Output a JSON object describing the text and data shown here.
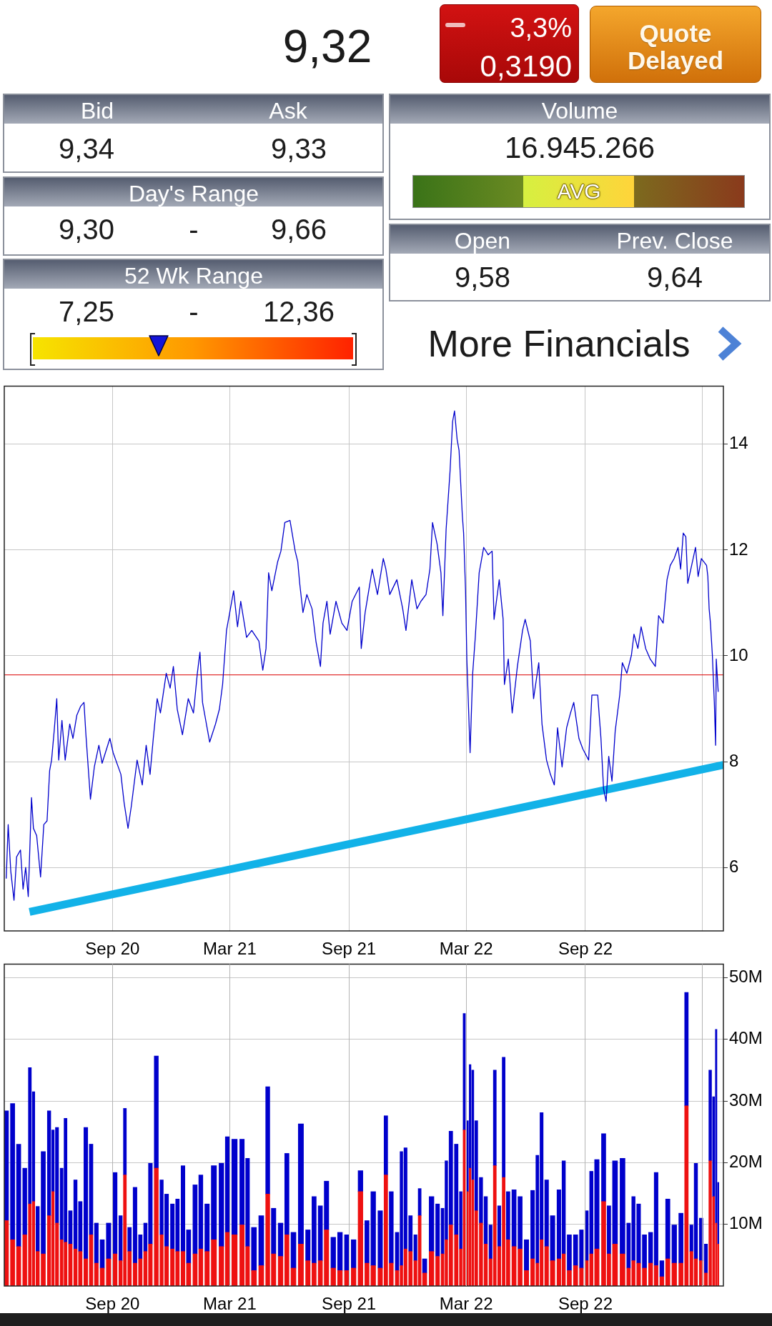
{
  "chart_data": [
    {
      "type": "other",
      "annotations": [
        "9,32",
        "3,3%",
        "0,3190",
        "Quote Delayed",
        "Bid",
        "Ask",
        "9,34",
        "9,33",
        "Day's Range",
        "9,30",
        "-",
        "9,66",
        "52 Wk Range",
        "7,25",
        "-",
        "12,36",
        "Volume",
        "16.945.266",
        "AVG",
        "Open",
        "Prev. Close",
        "9,58",
        "9,64",
        "More Financials"
      ]
    },
    {
      "type": "line",
      "series": [
        {
          "color": "#0000cc",
          "x": [
            "2020-03-21",
            "2020-03-24",
            "2020-03-28",
            "2020-04-02",
            "2020-04-06",
            "2020-04-12",
            "2020-04-16",
            "2020-04-20",
            "2020-04-24",
            "2020-04-29",
            "2020-05-02",
            "2020-05-07",
            "2020-05-13",
            "2020-05-18",
            "2020-05-23",
            "2020-05-27",
            "2020-05-30",
            "2020-06-03",
            "2020-06-07",
            "2020-06-10",
            "2020-06-15",
            "2020-06-20",
            "2020-06-27",
            "2020-07-02",
            "2020-07-08",
            "2020-07-14",
            "2020-07-19",
            "2020-07-22",
            "2020-07-29",
            "2020-08-04",
            "2020-08-11",
            "2020-08-16",
            "2020-08-28",
            "2020-09-02",
            "2020-09-14",
            "2020-09-19",
            "2020-09-25",
            "2020-09-30",
            "2020-10-09",
            "2020-10-17",
            "2020-10-23",
            "2020-10-29",
            "2020-11-03",
            "2020-11-09",
            "2020-11-14",
            "2020-11-23",
            "2020-11-29",
            "2020-12-04",
            "2020-12-10",
            "2020-12-18",
            "2020-12-27",
            "2021-01-04",
            "2021-01-10",
            "2021-01-14",
            "2021-01-18",
            "2021-01-24",
            "2021-01-29",
            "2021-02-07",
            "2021-02-13",
            "2021-02-18",
            "2021-02-24",
            "2021-03-01",
            "2021-03-07",
            "2021-03-13",
            "2021-03-18",
            "2021-03-27",
            "2021-04-04",
            "2021-04-15",
            "2021-04-21",
            "2021-04-26",
            "2021-04-30",
            "2021-05-05",
            "2021-05-14",
            "2021-05-19",
            "2021-05-25",
            "2021-06-02",
            "2021-06-10",
            "2021-06-14",
            "2021-06-17",
            "2021-06-22",
            "2021-06-28",
            "2021-07-06",
            "2021-07-12",
            "2021-07-19",
            "2021-07-23",
            "2021-07-29",
            "2021-08-03",
            "2021-08-12",
            "2021-08-21",
            "2021-08-29",
            "2021-09-06",
            "2021-09-17",
            "2021-09-20",
            "2021-09-26",
            "2021-10-07",
            "2021-10-15",
            "2021-10-24",
            "2021-10-28",
            "2021-11-03",
            "2021-11-14",
            "2021-11-23",
            "2021-11-28",
            "2021-12-07",
            "2021-12-15",
            "2021-12-21",
            "2021-12-29",
            "2022-01-04",
            "2022-01-08",
            "2022-01-15",
            "2022-01-21",
            "2022-01-24",
            "2022-01-29",
            "2022-02-04",
            "2022-02-08",
            "2022-02-11",
            "2022-02-15",
            "2022-02-18",
            "2022-02-23",
            "2022-02-25",
            "2022-02-28",
            "2022-03-02",
            "2022-03-07",
            "2022-03-11",
            "2022-03-15",
            "2022-03-21",
            "2022-03-28",
            "2022-04-04",
            "2022-04-10",
            "2022-04-13",
            "2022-04-21",
            "2022-04-27",
            "2022-04-29",
            "2022-05-05",
            "2022-05-11",
            "2022-05-19",
            "2022-05-27",
            "2022-05-31",
            "2022-06-08",
            "2022-06-13",
            "2022-06-21",
            "2022-06-26",
            "2022-07-03",
            "2022-07-09",
            "2022-07-15",
            "2022-07-20",
            "2022-07-27",
            "2022-08-03",
            "2022-08-09",
            "2022-08-14",
            "2022-08-22",
            "2022-08-28",
            "2022-09-06",
            "2022-09-11",
            "2022-09-20",
            "2022-09-25",
            "2022-09-29",
            "2022-10-03",
            "2022-10-07",
            "2022-10-12",
            "2022-10-17",
            "2022-10-24",
            "2022-10-28",
            "2022-11-04",
            "2022-11-11",
            "2022-11-15",
            "2022-11-21",
            "2022-11-26",
            "2022-12-03",
            "2022-12-10",
            "2022-12-18",
            "2022-12-23",
            "2022-12-30",
            "2023-01-05",
            "2023-01-10",
            "2023-01-16",
            "2023-01-22",
            "2023-01-26",
            "2023-01-30",
            "2023-02-03",
            "2023-02-06",
            "2023-02-12",
            "2023-02-18",
            "2023-02-22",
            "2023-02-27",
            "2023-03-07",
            "2023-03-09",
            "2023-03-11",
            "2023-03-13",
            "2023-03-16",
            "2023-03-19",
            "2023-03-21",
            "2023-03-22",
            "2023-03-25"
          ],
          "values": [
            5.79,
            6.81,
            5.93,
            5.38,
            6.2,
            6.33,
            5.59,
            6.0,
            5.45,
            7.32,
            6.74,
            6.6,
            5.82,
            6.81,
            6.88,
            7.83,
            8.03,
            8.58,
            9.19,
            8.03,
            8.78,
            8.03,
            8.71,
            8.44,
            8.88,
            9.05,
            9.12,
            8.51,
            7.29,
            7.9,
            8.31,
            7.97,
            8.44,
            8.17,
            7.76,
            7.22,
            6.74,
            7.15,
            8.03,
            7.56,
            8.31,
            7.76,
            8.44,
            9.19,
            8.92,
            9.67,
            9.39,
            9.8,
            8.99,
            8.51,
            9.19,
            8.92,
            9.67,
            10.07,
            9.12,
            8.71,
            8.37,
            8.71,
            8.99,
            9.46,
            10.48,
            10.82,
            11.23,
            10.55,
            11.03,
            10.35,
            10.48,
            10.28,
            9.73,
            10.14,
            11.57,
            11.23,
            11.78,
            11.98,
            12.52,
            12.56,
            11.98,
            11.78,
            11.37,
            10.82,
            11.16,
            10.89,
            10.28,
            9.8,
            10.62,
            11.03,
            10.41,
            11.03,
            10.62,
            10.48,
            11.03,
            11.3,
            10.14,
            10.82,
            11.64,
            11.16,
            11.84,
            11.64,
            11.16,
            11.44,
            10.89,
            10.48,
            11.44,
            10.89,
            11.03,
            11.16,
            11.64,
            12.52,
            12.12,
            11.57,
            10.76,
            12.39,
            13.48,
            14.43,
            14.63,
            14.09,
            13.88,
            12.66,
            12.32,
            11.23,
            9.94,
            8.17,
            9.67,
            10.35,
            11.57,
            12.05,
            11.91,
            11.98,
            10.69,
            11.44,
            10.69,
            9.46,
            9.94,
            8.92,
            9.8,
            10.48,
            10.69,
            10.28,
            9.19,
            9.87,
            8.71,
            8.03,
            7.76,
            7.56,
            8.64,
            7.9,
            8.64,
            8.92,
            9.12,
            8.44,
            8.24,
            8.03,
            9.26,
            9.26,
            8.44,
            7.49,
            7.25,
            8.1,
            7.63,
            8.58,
            9.26,
            9.87,
            9.67,
            10.01,
            10.41,
            10.14,
            10.55,
            10.14,
            9.94,
            9.8,
            10.76,
            10.62,
            11.44,
            11.71,
            11.84,
            12.05,
            11.64,
            12.32,
            12.25,
            11.37,
            11.71,
            12.05,
            11.5,
            11.84,
            11.71,
            11.5,
            10.89,
            10.62,
            10.01,
            9.12,
            8.31,
            9.94,
            9.32
          ]
        },
        {
          "color": "#12b2e8",
          "x": [
            "2020-04-26",
            "2023-04-02"
          ],
          "values": [
            5.16,
            7.94
          ]
        }
      ],
      "xlim": [
        "2020-03-18",
        "2023-04-02"
      ],
      "xticks": [
        {
          "value": "2020-09-01",
          "label": "Sep 20"
        },
        {
          "value": "2021-03-01",
          "label": "Mar 21"
        },
        {
          "value": "2021-09-01",
          "label": "Sep 21"
        },
        {
          "value": "2022-03-01",
          "label": "Mar 22"
        },
        {
          "value": "2022-09-01",
          "label": "Sep 22"
        },
        {
          "value": "2023-03-01",
          "label": null
        }
      ],
      "ylim": [
        4.8,
        15.1
      ],
      "yticks": [
        6,
        8,
        10,
        12,
        14
      ],
      "ref_lines": [
        {
          "axis": "y",
          "value": 9.64,
          "color": "#dd0000"
        }
      ],
      "grid": true
    },
    {
      "type": "bar",
      "stacked": true,
      "x": [
        "2020-03-21",
        "2020-03-31",
        "2020-04-09",
        "2020-04-19",
        "2020-04-27",
        "2020-05-02",
        "2020-05-08",
        "2020-05-17",
        "2020-05-27",
        "2020-06-01",
        "2020-06-07",
        "2020-06-15",
        "2020-06-20",
        "2020-06-28",
        "2020-07-06",
        "2020-07-13",
        "2020-07-22",
        "2020-07-30",
        "2020-08-07",
        "2020-08-16",
        "2020-08-26",
        "2020-09-05",
        "2020-09-14",
        "2020-09-20",
        "2020-09-27",
        "2020-10-06",
        "2020-10-14",
        "2020-10-22",
        "2020-10-29",
        "2020-11-08",
        "2020-11-16",
        "2020-11-23",
        "2020-12-03",
        "2020-12-10",
        "2020-12-19",
        "2020-12-27",
        "2021-01-07",
        "2021-01-15",
        "2021-01-25",
        "2021-02-04",
        "2021-02-17",
        "2021-02-25",
        "2021-03-08",
        "2021-03-21",
        "2021-03-28",
        "2021-04-07",
        "2021-04-19",
        "2021-04-29",
        "2021-05-07",
        "2021-05-19",
        "2021-05-28",
        "2021-06-07",
        "2021-06-19",
        "2021-06-30",
        "2021-07-09",
        "2021-07-19",
        "2021-07-28",
        "2021-08-08",
        "2021-08-18",
        "2021-08-29",
        "2021-09-08",
        "2021-09-19",
        "2021-09-29",
        "2021-10-08",
        "2021-10-20",
        "2021-10-28",
        "2021-11-05",
        "2021-11-15",
        "2021-11-21",
        "2021-11-27",
        "2021-12-05",
        "2021-12-13",
        "2021-12-19",
        "2021-12-26",
        "2022-01-07",
        "2022-01-16",
        "2022-01-24",
        "2022-01-29",
        "2022-02-05",
        "2022-02-14",
        "2022-02-21",
        "2022-02-26",
        "2022-03-03",
        "2022-03-07",
        "2022-03-11",
        "2022-03-16",
        "2022-03-24",
        "2022-03-31",
        "2022-04-08",
        "2022-04-14",
        "2022-04-21",
        "2022-04-28",
        "2022-05-04",
        "2022-05-14",
        "2022-05-23",
        "2022-06-02",
        "2022-06-12",
        "2022-06-19",
        "2022-06-25",
        "2022-07-03",
        "2022-07-12",
        "2022-07-23",
        "2022-07-29",
        "2022-08-07",
        "2022-08-17",
        "2022-08-26",
        "2022-09-03",
        "2022-09-10",
        "2022-09-18",
        "2022-09-30",
        "2022-10-07",
        "2022-10-16",
        "2022-10-29",
        "2022-11-07",
        "2022-11-14",
        "2022-11-22",
        "2022-12-01",
        "2022-12-11",
        "2022-12-19",
        "2022-12-28",
        "2023-01-06",
        "2023-01-16",
        "2023-01-27",
        "2023-02-04",
        "2023-02-12",
        "2023-02-18",
        "2023-02-27",
        "2023-03-06",
        "2023-03-13",
        "2023-03-18",
        "2023-03-22",
        "2023-03-25"
      ],
      "series": [
        {
          "color": "#ee1111",
          "values": [
            10.6,
            7.5,
            6.4,
            8.3,
            13.3,
            13.7,
            5.6,
            5.2,
            11.4,
            15.3,
            10.2,
            7.5,
            7.1,
            6.8,
            6.0,
            5.6,
            4.4,
            8.3,
            3.7,
            2.9,
            4.4,
            5.2,
            4.1,
            18,
            5.6,
            3.7,
            4.4,
            5.6,
            6.8,
            19.1,
            8.3,
            6.4,
            6.0,
            5.6,
            5.6,
            3.7,
            5.2,
            6.0,
            5.6,
            7.5,
            6.4,
            8.7,
            8.3,
            9.9,
            6.4,
            2.5,
            3.3,
            14.9,
            5.2,
            4.8,
            8.3,
            2.9,
            6.8,
            4.1,
            3.7,
            4.1,
            9.1,
            2.9,
            2.5,
            2.5,
            2.9,
            15.3,
            3.7,
            3.3,
            2.9,
            18,
            3.7,
            2.5,
            3.3,
            6.0,
            5.6,
            4.1,
            11.4,
            2.1,
            5.6,
            4.8,
            5.2,
            7.5,
            9.9,
            8.3,
            6.0,
            25.3,
            15.3,
            19.1,
            17.2,
            12.2,
            10.2,
            6.8,
            4.4,
            19.5,
            6.4,
            17.6,
            7.5,
            6.4,
            6.0,
            2.5,
            4.4,
            3.7,
            7.5,
            6.4,
            4.1,
            4.4,
            5.2,
            2.5,
            3.3,
            2.9,
            4.1,
            5.2,
            6.0,
            13.7,
            5.2,
            6.8,
            5.2,
            2.9,
            4.1,
            3.7,
            2.9,
            3.7,
            3.3,
            1.5,
            4.4,
            3.7,
            3.7,
            29.2,
            5.6,
            4.4,
            4.1,
            2.1,
            20.3,
            14.5,
            10.2,
            6.8
          ]
        },
        {
          "color": "#0000cc",
          "values": [
            17.8,
            22.1,
            16.6,
            10.8,
            22.1,
            17.8,
            7.3,
            16.6,
            17.0,
            10.0,
            15.5,
            11.6,
            20.1,
            5.4,
            11.2,
            8.1,
            21.3,
            14.7,
            6.5,
            4.6,
            5.8,
            13.2,
            7.3,
            10.8,
            3.9,
            12.3,
            3.9,
            4.6,
            13.1,
            18.2,
            8.9,
            8.5,
            7.3,
            8.5,
            13.9,
            5.4,
            11.2,
            12.0,
            7.7,
            12.0,
            13.5,
            15.5,
            15.5,
            13.9,
            14.3,
            7.0,
            8.1,
            17.4,
            7.4,
            5.4,
            13.2,
            5.8,
            19.5,
            5.0,
            10.8,
            8.9,
            7.9,
            5.0,
            6.2,
            5.8,
            4.6,
            3.4,
            6.9,
            12.0,
            9.3,
            9.6,
            11.6,
            6.2,
            18.5,
            16.4,
            5.8,
            4.2,
            4.4,
            2.3,
            8.9,
            8.5,
            7.4,
            12.8,
            15.2,
            14.7,
            9.3,
            18.9,
            11.5,
            16.8,
            17.8,
            14.6,
            7.4,
            7.7,
            5.5,
            15.5,
            6.6,
            19.5,
            7.8,
            9.2,
            8.5,
            5.0,
            11.1,
            17.5,
            20.6,
            10.8,
            7.3,
            11.2,
            15.1,
            5.8,
            5.0,
            6.2,
            8.1,
            13.4,
            14.5,
            11.0,
            7.8,
            13.5,
            15.5,
            7.3,
            10.4,
            9.6,
            5.4,
            5.0,
            15.1,
            2.6,
            9.7,
            6.2,
            8.1,
            18.4,
            4.3,
            15.5,
            6.9,
            4.7,
            14.7,
            16.2,
            31.4,
            10.0
          ]
        }
      ],
      "xlim": [
        "2020-03-18",
        "2023-04-02"
      ],
      "xticks": [
        {
          "value": "2020-09-01",
          "label": "Sep 20"
        },
        {
          "value": "2021-03-01",
          "label": "Mar 21"
        },
        {
          "value": "2021-09-01",
          "label": "Sep 21"
        },
        {
          "value": "2022-03-01",
          "label": "Mar 22"
        },
        {
          "value": "2022-09-01",
          "label": "Sep 22"
        },
        {
          "value": "2023-03-01",
          "label": null
        }
      ],
      "ylim": [
        0,
        52.2
      ],
      "yticks": [
        {
          "value": 10,
          "label": "10M"
        },
        {
          "value": 20,
          "label": "20M"
        },
        {
          "value": 30,
          "label": "30M"
        },
        {
          "value": 40,
          "label": "40M"
        },
        {
          "value": 50,
          "label": "50M"
        }
      ],
      "grid": true
    }
  ]
}
